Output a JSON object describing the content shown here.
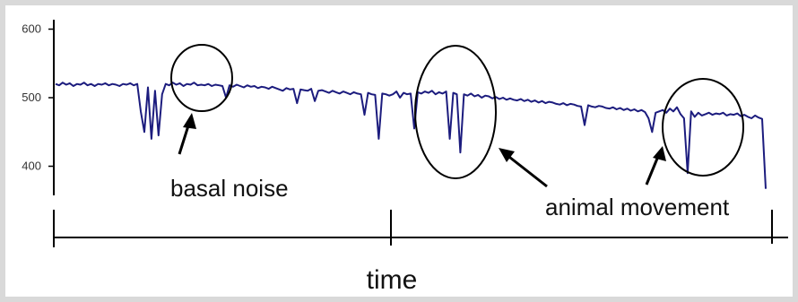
{
  "chart_data": {
    "type": "line",
    "title": "",
    "xlabel": "time",
    "ylabel": "",
    "ylim": [
      370,
      610
    ],
    "yticks": [
      400,
      500,
      600
    ],
    "grid": false,
    "series": [
      {
        "color": "#1c1c7e",
        "x": [
          0,
          0.5,
          1,
          1.5,
          2,
          2.5,
          3,
          3.5,
          4,
          4.5,
          5,
          5.5,
          6,
          6.5,
          7,
          7.5,
          8,
          8.5,
          9,
          9.5,
          10,
          10.5,
          11,
          11.5,
          12,
          12.5,
          13,
          13.5,
          14,
          14.5,
          15,
          15.5,
          16,
          16.5,
          17,
          17.5,
          18,
          18.5,
          19,
          19.5,
          20,
          20.5,
          21,
          21.5,
          22,
          22.5,
          23,
          23.5,
          24,
          24.5,
          25,
          25.5,
          26,
          26.5,
          27,
          27.5,
          28,
          28.5,
          29,
          29.5,
          30,
          30.5,
          31,
          31.5,
          32,
          32.5,
          33,
          33.5,
          34,
          34.5,
          35,
          35.5,
          36,
          36.5,
          37,
          37.5,
          38,
          38.5,
          39,
          39.5,
          40,
          40.5,
          41,
          41.5,
          42,
          42.5,
          43,
          43.5,
          44,
          44.5,
          45,
          45.5,
          46,
          46.5,
          47,
          47.5,
          48,
          48.5,
          49,
          49.5,
          50,
          50.5,
          51,
          51.5,
          52,
          52.5,
          53,
          53.5,
          54,
          54.5,
          55,
          55.5,
          56,
          56.5,
          57,
          57.5,
          58,
          58.5,
          59,
          59.5,
          60,
          60.5,
          61,
          61.5,
          62,
          62.5,
          63,
          63.5,
          64,
          64.5,
          65,
          65.5,
          66,
          66.5,
          67,
          67.5,
          68,
          68.5,
          69,
          69.5,
          70,
          70.5,
          71,
          71.5,
          72,
          72.5,
          73,
          73.5,
          74,
          74.5,
          75,
          75.5,
          76,
          76.5,
          77,
          77.5,
          78,
          78.5,
          79,
          79.5,
          80,
          80.5,
          81,
          81.5,
          82,
          82.5,
          83,
          83.5,
          84,
          84.5,
          85,
          85.5,
          86,
          86.5,
          87,
          87.5,
          88,
          88.5,
          89,
          89.5,
          90,
          90.5,
          91,
          91.5,
          92,
          92.5,
          93,
          93.5,
          94,
          94.5,
          95,
          95.5,
          96,
          96.5,
          97,
          97.5,
          98,
          98.5,
          99,
          99.5,
          100
        ],
        "y": [
          520,
          518,
          522,
          519,
          521,
          517,
          520,
          519,
          522,
          518,
          520,
          517,
          520,
          519,
          521,
          518,
          520,
          519,
          517,
          520,
          519,
          521,
          518,
          520,
          480,
          450,
          515,
          440,
          510,
          445,
          505,
          520,
          518,
          522,
          519,
          521,
          517,
          520,
          519,
          522,
          518,
          519,
          518,
          520,
          517,
          519,
          518,
          517,
          500,
          518,
          516,
          519,
          517,
          515,
          518,
          516,
          517,
          514,
          516,
          515,
          513,
          516,
          514,
          512,
          510,
          514,
          512,
          513,
          492,
          512,
          511,
          510,
          513,
          495,
          510,
          511,
          509,
          507,
          510,
          508,
          506,
          509,
          507,
          505,
          508,
          506,
          505,
          475,
          507,
          505,
          504,
          440,
          506,
          505,
          503,
          505,
          509,
          500,
          507,
          505,
          506,
          455,
          508,
          506,
          509,
          507,
          510,
          505,
          508,
          506,
          509,
          440,
          507,
          505,
          420,
          505,
          503,
          506,
          502,
          504,
          500,
          503,
          502,
          499,
          501,
          498,
          500,
          497,
          499,
          497,
          496,
          498,
          495,
          497,
          494,
          496,
          493,
          495,
          492,
          494,
          493,
          491,
          490,
          492,
          489,
          491,
          490,
          488,
          487,
          460,
          489,
          487,
          486,
          488,
          487,
          485,
          484,
          486,
          483,
          485,
          482,
          484,
          481,
          483,
          480,
          482,
          479,
          470,
          450,
          478,
          480,
          482,
          478,
          484,
          480,
          486,
          476,
          470,
          390,
          480,
          472,
          478,
          474,
          476,
          478,
          475,
          477,
          476,
          478,
          474,
          476,
          475,
          477,
          473,
          475,
          472,
          470,
          474,
          471,
          469,
          367
        ]
      }
    ],
    "annotations": [
      {
        "text": "basal noise"
      },
      {
        "text": "animal movement"
      }
    ]
  }
}
